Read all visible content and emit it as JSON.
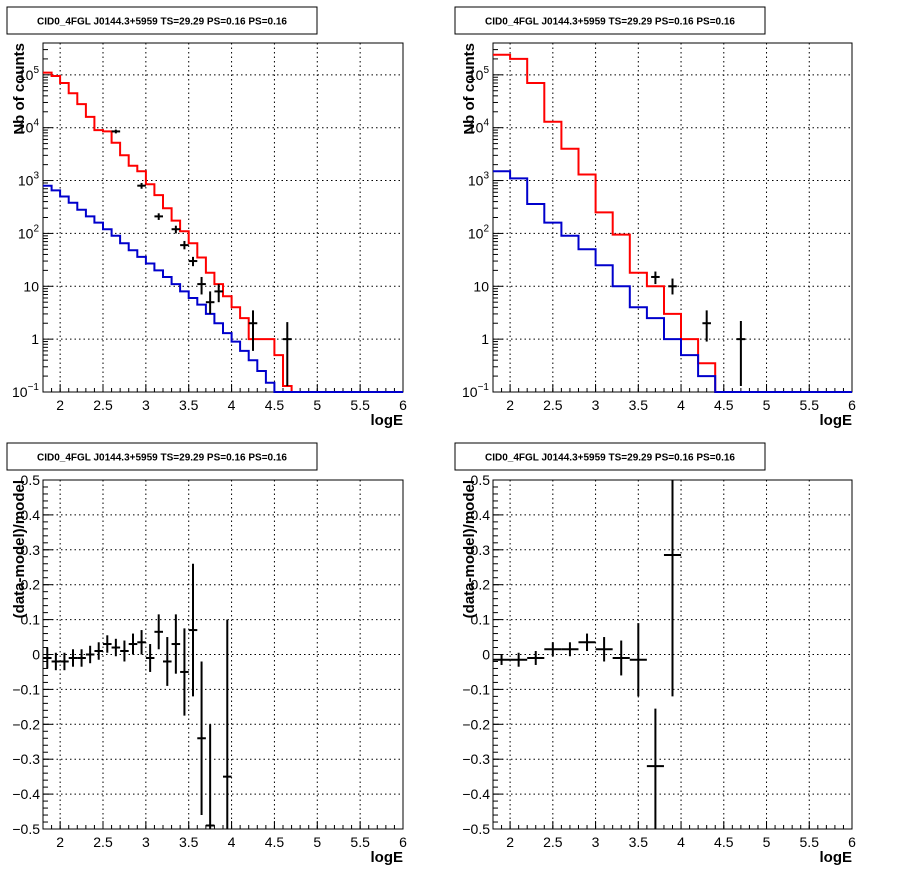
{
  "colors": {
    "data": "#000000",
    "model_total": "#ff0000",
    "model_component": "#0000cc",
    "grid": "#000000"
  },
  "chart_data": [
    {
      "type": "line",
      "title": "CID0_4FGL J0144.3+5959 TS=29.29 PS=0.16 PS=0.16",
      "xlabel": "logE",
      "ylabel": "Nb of counts",
      "xlim": [
        1.8,
        6.0
      ],
      "ylim": [
        0.1,
        400000
      ],
      "yscale": "log",
      "grid": true,
      "xticks": [
        "2",
        "2.5",
        "3",
        "3.5",
        "4",
        "4.5",
        "5",
        "5.5",
        "6"
      ],
      "yticks": [
        {
          "value": 0.1,
          "label": "10",
          "exp": "−1"
        },
        {
          "value": 1,
          "label": "1",
          "exp": ""
        },
        {
          "value": 10,
          "label": "10",
          "exp": ""
        },
        {
          "value": 100,
          "label": "10",
          "exp": "2"
        },
        {
          "value": 1000,
          "label": "10",
          "exp": "3"
        },
        {
          "value": 10000,
          "label": "10",
          "exp": "4"
        },
        {
          "value": 100000,
          "label": "10",
          "exp": "5"
        }
      ],
      "bin_edges": [
        1.8,
        1.9,
        2.0,
        2.1,
        2.2,
        2.3,
        2.4,
        2.5,
        2.6,
        2.7,
        2.8,
        2.9,
        3.0,
        3.1,
        3.2,
        3.3,
        3.4,
        3.5,
        3.6,
        3.7,
        3.8,
        3.9,
        4.0,
        4.1,
        4.2,
        4.3,
        4.4,
        4.5,
        4.6,
        4.7,
        4.8,
        4.9,
        5.0,
        5.1,
        5.2,
        5.3,
        5.4,
        5.5,
        5.6,
        5.7,
        5.8,
        5.9,
        6.0
      ],
      "series": [
        {
          "role": "model_total",
          "values": [
            110000,
            95000,
            70000,
            45000,
            28000,
            16000,
            9000,
            8500,
            5200,
            3000,
            1900,
            1500,
            850,
            530,
            300,
            175,
            110,
            65,
            35,
            18,
            11,
            6.5,
            4,
            2.5,
            1,
            1,
            1,
            0.5,
            0.13,
            0.1,
            0.1,
            0.1,
            0.1,
            0.1,
            0.1,
            0.1,
            0.1,
            0.1,
            0.1,
            0.1,
            0.1,
            0.1
          ]
        },
        {
          "role": "model_component",
          "values": [
            800,
            650,
            500,
            380,
            280,
            210,
            160,
            120,
            90,
            65,
            48,
            36,
            27,
            20,
            15,
            11,
            8,
            6,
            4.5,
            3,
            2,
            1.3,
            0.9,
            0.6,
            0.4,
            0.25,
            0.15,
            0.1,
            0.1,
            0.1,
            0.1,
            0.1,
            0.1,
            0.1,
            0.1,
            0.1,
            0.1,
            0.1,
            0.1,
            0.1,
            0.1,
            0.1
          ]
        },
        {
          "role": "data",
          "points": [
            {
              "x": 2.65,
              "y": 8500,
              "lo": 7800,
              "hi": 9200
            },
            {
              "x": 2.95,
              "y": 800,
              "lo": 700,
              "hi": 900
            },
            {
              "x": 3.15,
              "y": 210,
              "lo": 180,
              "hi": 240
            },
            {
              "x": 3.35,
              "y": 120,
              "lo": 100,
              "hi": 140
            },
            {
              "x": 3.45,
              "y": 60,
              "lo": 50,
              "hi": 72
            },
            {
              "x": 3.55,
              "y": 30,
              "lo": 24,
              "hi": 36
            },
            {
              "x": 3.65,
              "y": 11,
              "lo": 7,
              "hi": 15
            },
            {
              "x": 3.75,
              "y": 5,
              "lo": 3,
              "hi": 8
            },
            {
              "x": 3.85,
              "y": 8,
              "lo": 5,
              "hi": 11
            },
            {
              "x": 4.25,
              "y": 2,
              "lo": 0.6,
              "hi": 3.5
            },
            {
              "x": 4.65,
              "y": 1,
              "lo": 0.13,
              "hi": 2.1
            }
          ]
        }
      ]
    },
    {
      "type": "line",
      "title": "CID0_4FGL J0144.3+5959 TS=29.29 PS=0.16 PS=0.16",
      "xlabel": "logE",
      "ylabel": "Nb of counts",
      "xlim": [
        1.8,
        6.0
      ],
      "ylim": [
        0.1,
        400000
      ],
      "yscale": "log",
      "grid": true,
      "xticks": [
        "2",
        "2.5",
        "3",
        "3.5",
        "4",
        "4.5",
        "5",
        "5.5",
        "6"
      ],
      "yticks": [
        {
          "value": 0.1,
          "label": "10",
          "exp": "−1"
        },
        {
          "value": 1,
          "label": "1",
          "exp": ""
        },
        {
          "value": 10,
          "label": "10",
          "exp": ""
        },
        {
          "value": 100,
          "label": "10",
          "exp": "2"
        },
        {
          "value": 1000,
          "label": "10",
          "exp": "3"
        },
        {
          "value": 10000,
          "label": "10",
          "exp": "4"
        },
        {
          "value": 100000,
          "label": "10",
          "exp": "5"
        }
      ],
      "bin_edges": [
        1.8,
        2.0,
        2.2,
        2.4,
        2.6,
        2.8,
        3.0,
        3.2,
        3.4,
        3.6,
        3.8,
        4.0,
        4.2,
        4.4,
        4.6,
        4.8,
        5.0,
        5.2,
        5.4,
        5.6,
        5.8,
        6.0
      ],
      "series": [
        {
          "role": "model_total",
          "values": [
            240000,
            200000,
            70000,
            13000,
            4000,
            1300,
            250,
            95,
            18,
            10,
            3,
            1,
            0.35,
            0.1,
            0.1,
            0.1,
            0.1,
            0.1,
            0.1,
            0.1,
            0.1
          ]
        },
        {
          "role": "model_component",
          "values": [
            1500,
            1100,
            360,
            160,
            90,
            50,
            25,
            10,
            4,
            2.5,
            1,
            0.5,
            0.2,
            0.1,
            0.1,
            0.1,
            0.1,
            0.1,
            0.1,
            0.1,
            0.1
          ]
        },
        {
          "role": "data",
          "points": [
            {
              "x": 3.7,
              "y": 15,
              "lo": 11,
              "hi": 19
            },
            {
              "x": 3.9,
              "y": 10,
              "lo": 7,
              "hi": 14
            },
            {
              "x": 4.3,
              "y": 2,
              "lo": 0.9,
              "hi": 3.5
            },
            {
              "x": 4.7,
              "y": 1,
              "lo": 0.13,
              "hi": 2.2
            }
          ]
        }
      ]
    },
    {
      "type": "scatter",
      "title": "CID0_4FGL J0144.3+5959 TS=29.29 PS=0.16 PS=0.16",
      "xlabel": "logE",
      "ylabel": "(data-model)/model",
      "xlim": [
        1.8,
        6.0
      ],
      "ylim": [
        -0.5,
        0.5
      ],
      "grid": true,
      "xticks": [
        "2",
        "2.5",
        "3",
        "3.5",
        "4",
        "4.5",
        "5",
        "5.5",
        "6"
      ],
      "yticks": [
        "−0.5",
        "−0.4",
        "−0.3",
        "−0.2",
        "−0.1",
        "0",
        "0.1",
        "0.2",
        "0.3",
        "0.4",
        "0.5"
      ],
      "series": [
        {
          "role": "data",
          "points": [
            {
              "x": 1.85,
              "xerr": 0.05,
              "y": -0.01,
              "lo": -0.04,
              "hi": 0.02
            },
            {
              "x": 1.95,
              "xerr": 0.05,
              "y": -0.02,
              "lo": -0.045,
              "hi": 0.005
            },
            {
              "x": 2.05,
              "xerr": 0.05,
              "y": -0.02,
              "lo": -0.045,
              "hi": 0.005
            },
            {
              "x": 2.15,
              "xerr": 0.05,
              "y": -0.01,
              "lo": -0.035,
              "hi": 0.015
            },
            {
              "x": 2.25,
              "xerr": 0.05,
              "y": -0.01,
              "lo": -0.035,
              "hi": 0.015
            },
            {
              "x": 2.35,
              "xerr": 0.05,
              "y": 0.0,
              "lo": -0.025,
              "hi": 0.025
            },
            {
              "x": 2.45,
              "xerr": 0.05,
              "y": 0.01,
              "lo": -0.015,
              "hi": 0.035
            },
            {
              "x": 2.55,
              "xerr": 0.05,
              "y": 0.03,
              "lo": 0.005,
              "hi": 0.055
            },
            {
              "x": 2.65,
              "xerr": 0.05,
              "y": 0.02,
              "lo": -0.005,
              "hi": 0.045
            },
            {
              "x": 2.75,
              "xerr": 0.05,
              "y": 0.01,
              "lo": -0.02,
              "hi": 0.04
            },
            {
              "x": 2.85,
              "xerr": 0.05,
              "y": 0.03,
              "lo": 0.0,
              "hi": 0.06
            },
            {
              "x": 2.95,
              "xerr": 0.05,
              "y": 0.035,
              "lo": 0.0,
              "hi": 0.07
            },
            {
              "x": 3.05,
              "xerr": 0.05,
              "y": -0.01,
              "lo": -0.05,
              "hi": 0.03
            },
            {
              "x": 3.15,
              "xerr": 0.05,
              "y": 0.065,
              "lo": 0.015,
              "hi": 0.115
            },
            {
              "x": 3.25,
              "xerr": 0.05,
              "y": -0.02,
              "lo": -0.09,
              "hi": 0.05
            },
            {
              "x": 3.35,
              "xerr": 0.05,
              "y": 0.03,
              "lo": -0.055,
              "hi": 0.115
            },
            {
              "x": 3.45,
              "xerr": 0.05,
              "y": -0.05,
              "lo": -0.175,
              "hi": 0.075
            },
            {
              "x": 3.55,
              "xerr": 0.05,
              "y": 0.07,
              "lo": -0.12,
              "hi": 0.26
            },
            {
              "x": 3.65,
              "xerr": 0.05,
              "y": -0.24,
              "lo": -0.46,
              "hi": -0.02
            },
            {
              "x": 3.75,
              "xerr": 0.05,
              "y": -0.49,
              "lo": -0.5,
              "hi": -0.2
            },
            {
              "x": 3.95,
              "xerr": 0.05,
              "y": -0.35,
              "lo": -0.5,
              "hi": 0.1
            }
          ]
        }
      ]
    },
    {
      "type": "scatter",
      "title": "CID0_4FGL J0144.3+5959 TS=29.29 PS=0.16 PS=0.16",
      "xlabel": "logE",
      "ylabel": "(data-model)/model",
      "xlim": [
        1.8,
        6.0
      ],
      "ylim": [
        -0.5,
        0.5
      ],
      "grid": true,
      "xticks": [
        "2",
        "2.5",
        "3",
        "3.5",
        "4",
        "4.5",
        "5",
        "5.5",
        "6"
      ],
      "yticks": [
        "−0.5",
        "−0.4",
        "−0.3",
        "−0.2",
        "−0.1",
        "0",
        "0.1",
        "0.2",
        "0.3",
        "0.4",
        "0.5"
      ],
      "series": [
        {
          "role": "data",
          "points": [
            {
              "x": 1.9,
              "xerr": 0.1,
              "y": -0.015,
              "lo": -0.03,
              "hi": 0.0
            },
            {
              "x": 2.1,
              "xerr": 0.1,
              "y": -0.015,
              "lo": -0.035,
              "hi": 0.005
            },
            {
              "x": 2.3,
              "xerr": 0.1,
              "y": -0.01,
              "lo": -0.03,
              "hi": 0.01
            },
            {
              "x": 2.5,
              "xerr": 0.1,
              "y": 0.015,
              "lo": -0.005,
              "hi": 0.035
            },
            {
              "x": 2.7,
              "xerr": 0.1,
              "y": 0.015,
              "lo": -0.005,
              "hi": 0.035
            },
            {
              "x": 2.9,
              "xerr": 0.1,
              "y": 0.035,
              "lo": 0.01,
              "hi": 0.06
            },
            {
              "x": 3.1,
              "xerr": 0.1,
              "y": 0.015,
              "lo": -0.02,
              "hi": 0.05
            },
            {
              "x": 3.3,
              "xerr": 0.1,
              "y": -0.01,
              "lo": -0.06,
              "hi": 0.04
            },
            {
              "x": 3.5,
              "xerr": 0.1,
              "y": -0.015,
              "lo": -0.12,
              "hi": 0.09
            },
            {
              "x": 3.7,
              "xerr": 0.1,
              "y": -0.32,
              "lo": -0.5,
              "hi": -0.155
            },
            {
              "x": 3.9,
              "xerr": 0.1,
              "y": 0.285,
              "lo": -0.12,
              "hi": 0.5
            }
          ]
        }
      ]
    }
  ]
}
